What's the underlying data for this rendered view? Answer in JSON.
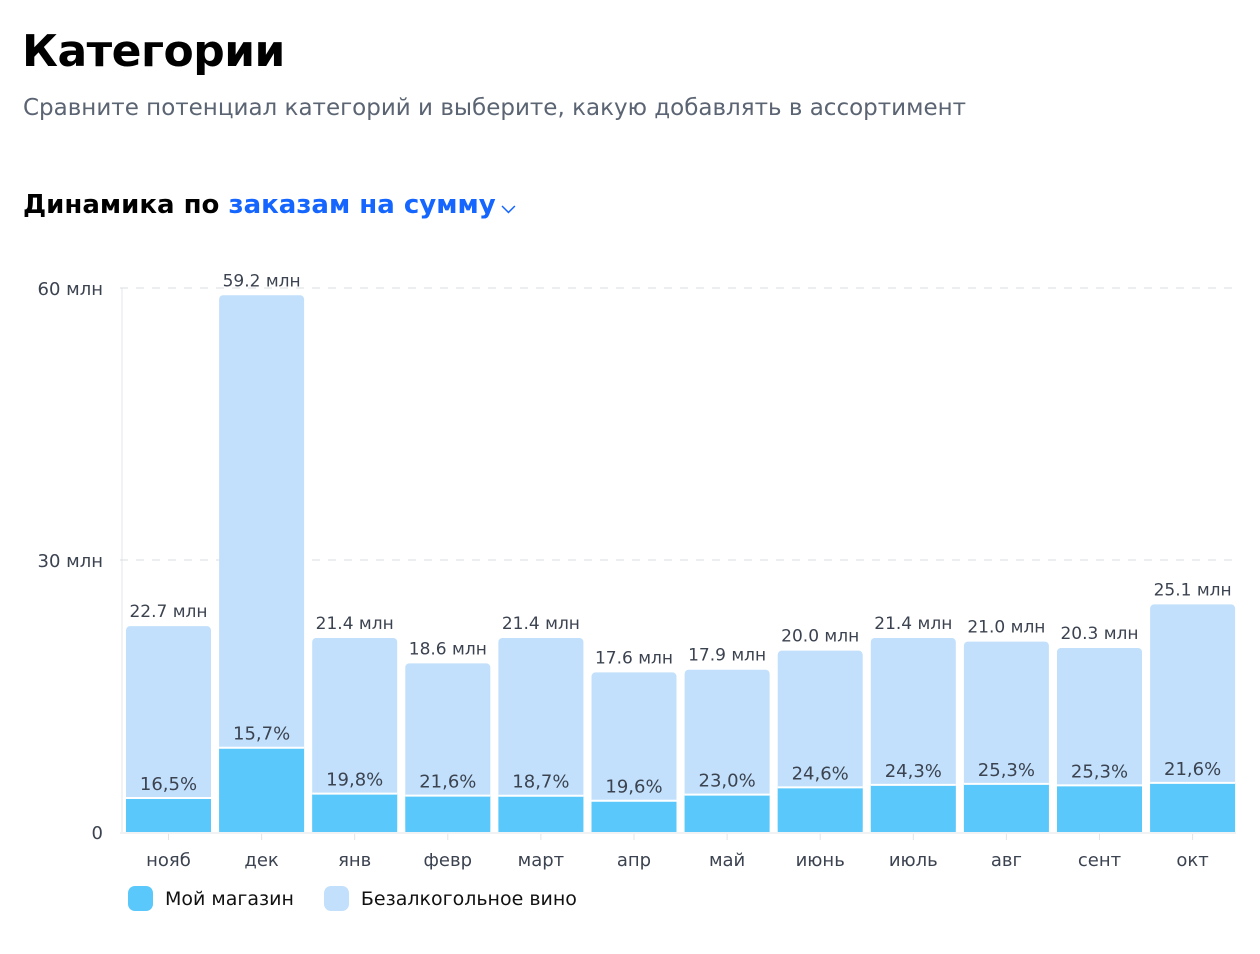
{
  "header": {
    "title": "Категории",
    "subtitle": "Сравните потенциал категорий и выберите, какую добавлять в ассортимент"
  },
  "section": {
    "prefix": "Динамика по",
    "metric_dropdown": "заказам на сумму",
    "dropdown_icon": "chevron-down-icon"
  },
  "colors": {
    "my_store": "#5ac8fa",
    "category": "#c2e0fb",
    "accent": "#1565ff"
  },
  "chart_data": {
    "type": "bar",
    "stacked": true,
    "categories": [
      "нояб",
      "дек",
      "янв",
      "февр",
      "март",
      "апр",
      "май",
      "июнь",
      "июль",
      "авг",
      "сент",
      "окт"
    ],
    "totals": [
      22.7,
      59.2,
      21.4,
      18.6,
      21.4,
      17.6,
      17.9,
      20.0,
      21.4,
      21.0,
      20.3,
      25.1
    ],
    "total_labels": [
      "22.7 млн",
      "59.2 млн",
      "21.4 млн",
      "18.6 млн",
      "21.4 млн",
      "17.6 млн",
      "17.9 млн",
      "20.0 млн",
      "21.4 млн",
      "21.0 млн",
      "20.3 млн",
      "25.1 млн"
    ],
    "my_store_share_pct": [
      16.5,
      15.7,
      19.8,
      21.6,
      18.7,
      19.6,
      23.0,
      24.6,
      24.3,
      25.3,
      25.3,
      21.6
    ],
    "share_labels": [
      "16,5%",
      "15,7%",
      "19,8%",
      "21,6%",
      "18,7%",
      "19,6%",
      "23,0%",
      "24,6%",
      "24,3%",
      "25,3%",
      "25,3%",
      "21,6%"
    ],
    "series": [
      {
        "name": "Мой магазин"
      },
      {
        "name": "Безалкогольное вино"
      }
    ],
    "yticks": [
      0,
      30,
      60
    ],
    "ytick_labels": [
      "0",
      "30 млн",
      "60 млн"
    ],
    "ylim": [
      0,
      60
    ],
    "grid": "dashed horizontal",
    "legend": "bottom-left"
  }
}
